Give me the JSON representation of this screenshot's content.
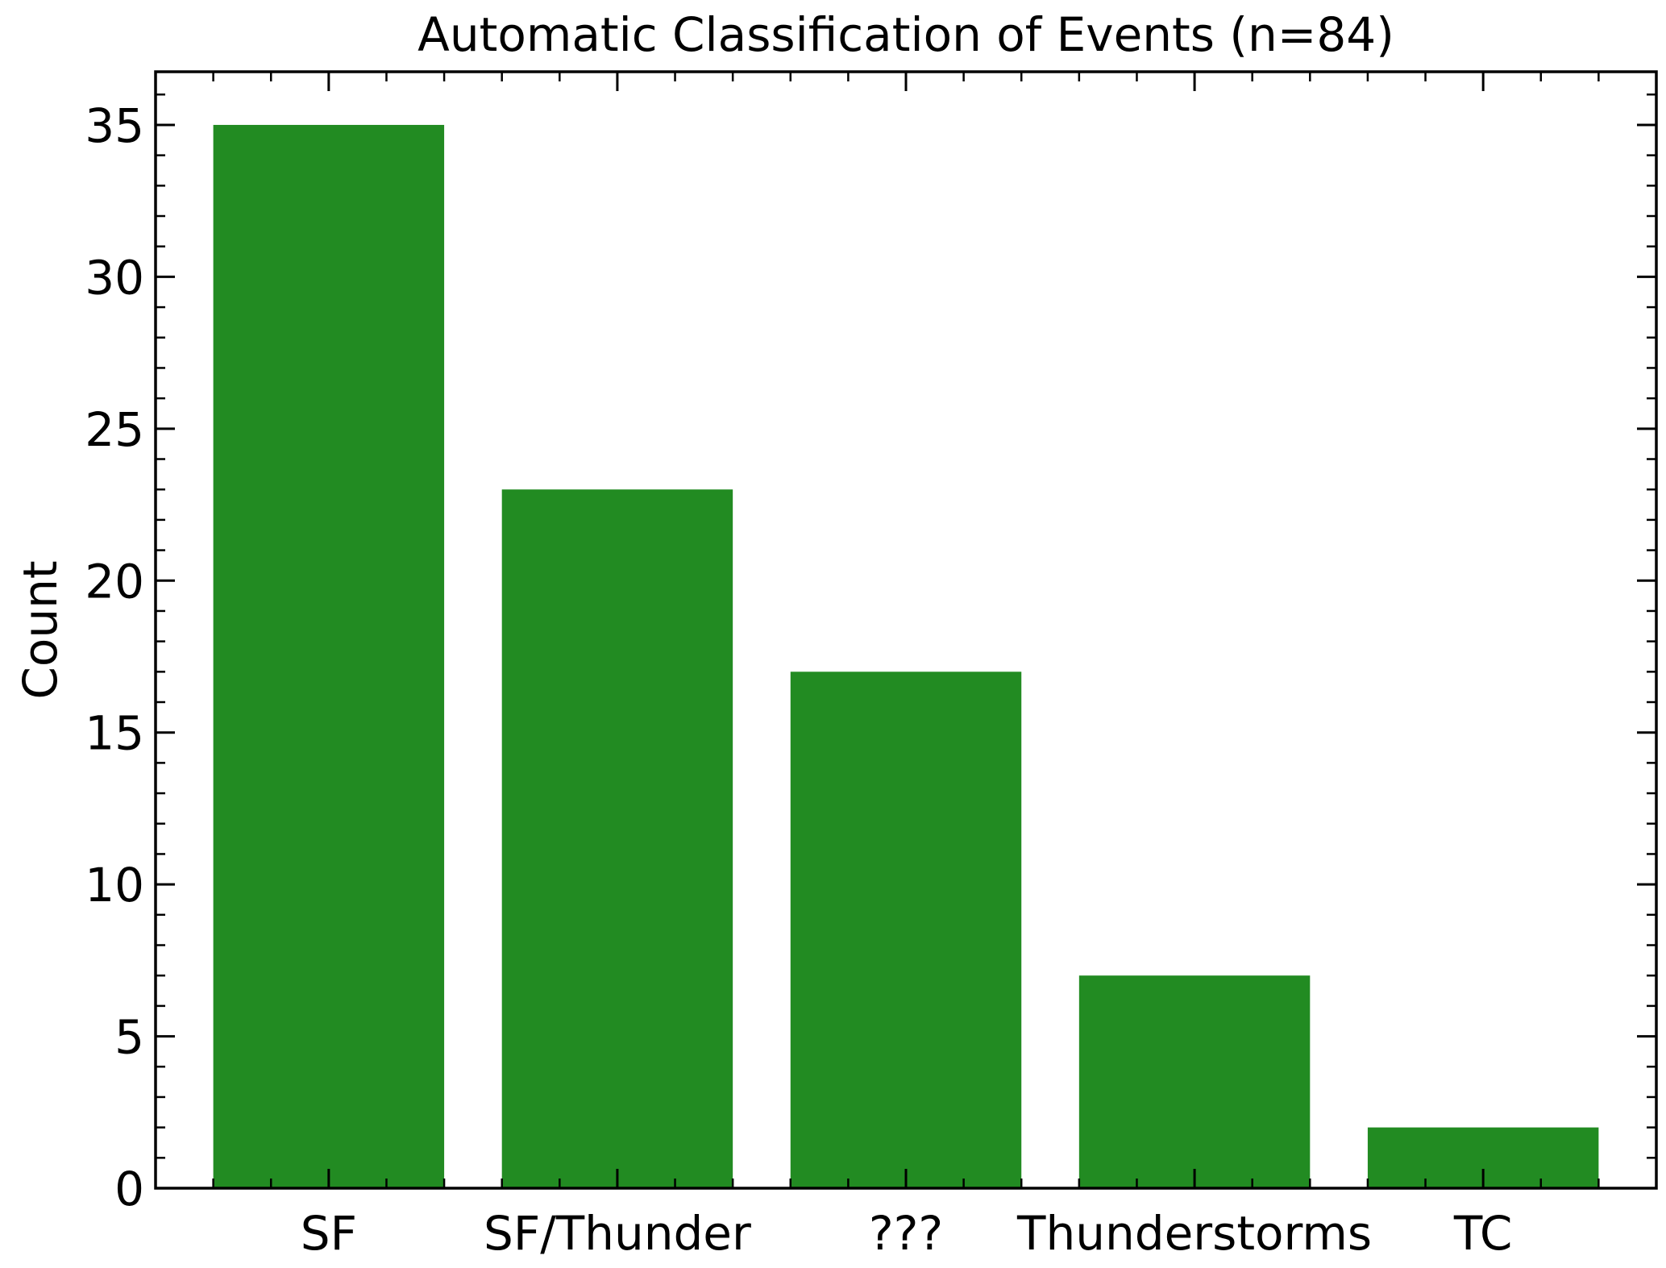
{
  "chart_data": {
    "type": "bar",
    "title": "Automatic Classification of Events (n=84)",
    "xlabel": "",
    "ylabel": "Count",
    "categories": [
      "SF",
      "SF/Thunder",
      "???",
      "Thunderstorms",
      "TC"
    ],
    "values": [
      35,
      23,
      17,
      7,
      2
    ],
    "ylim": [
      0,
      36.75
    ],
    "yticks": [
      0,
      5,
      10,
      15,
      20,
      25,
      30,
      35
    ],
    "ytick_labels": [
      "0",
      "5",
      "10",
      "15",
      "20",
      "25",
      "30",
      "35"
    ],
    "bar_color": "#228b22",
    "grid": false,
    "legend": "none"
  }
}
